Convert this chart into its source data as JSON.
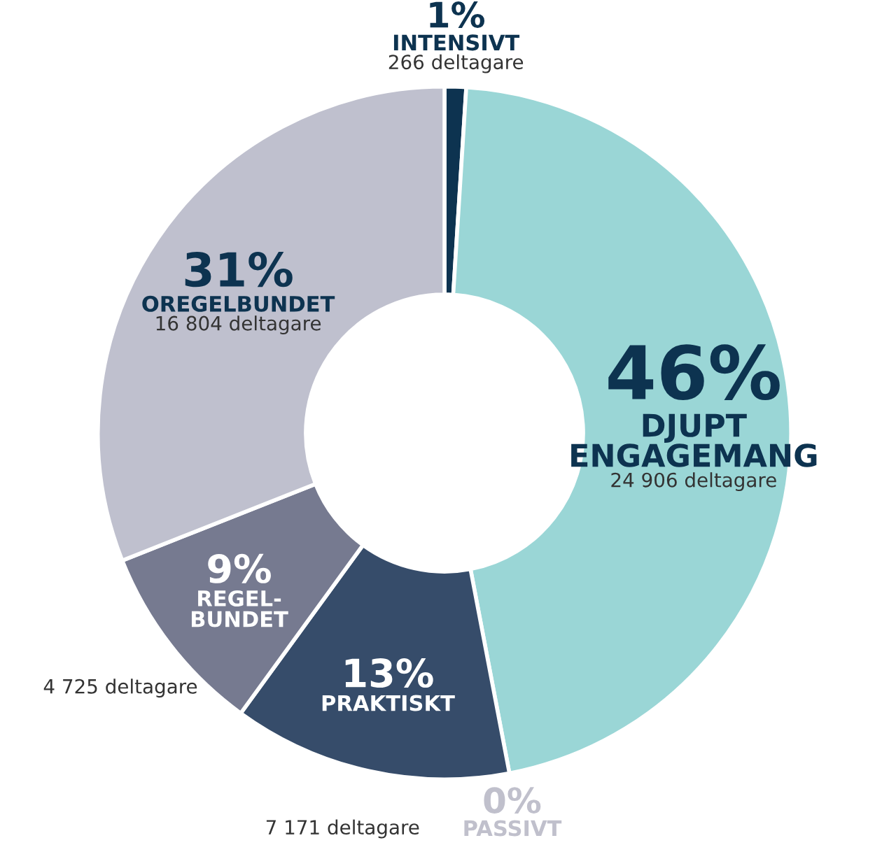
{
  "chart_data": {
    "type": "donut",
    "categories": [
      "INTENSIVT",
      "DJUPT\nENGAGEMANG",
      "PASSIVT",
      "PRAKTISKT",
      "REGEL-\nBUNDET",
      "OREGELBUNDET"
    ],
    "values": [
      1,
      46,
      0,
      13,
      9,
      31
    ],
    "colors": [
      "#0d3350",
      "#9ad6d6",
      "#c0c0cc",
      "#364c6a",
      "#767a90",
      "#bfc0ce"
    ],
    "value_labels": [
      "1%",
      "46%",
      "0%",
      "13%",
      "9%",
      "31%"
    ],
    "annotations": [
      "266 deltagare",
      "24 906 deltagare",
      null,
      "7 171 deltagare",
      "4 725 deltagare",
      "16 804 deltagare"
    ]
  }
}
